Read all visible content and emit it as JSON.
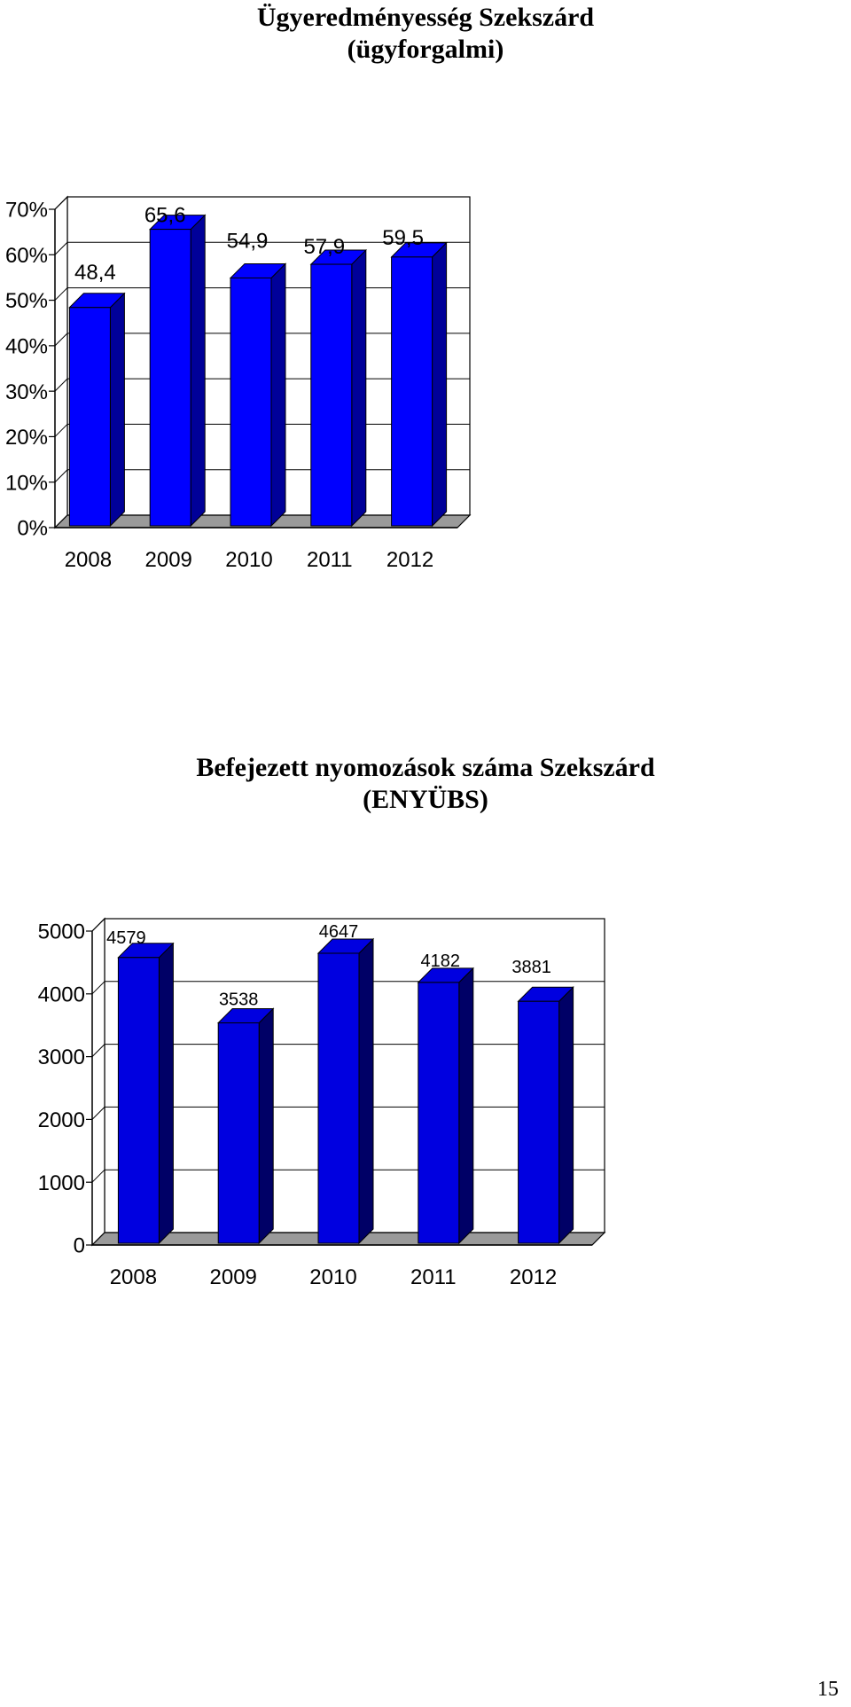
{
  "chart_data": [
    {
      "type": "bar",
      "title_lines": [
        "Ügyeredményesség Szekszárd",
        "(ügyforgalmi)"
      ],
      "categories": [
        "2008",
        "2009",
        "2010",
        "2011",
        "2012"
      ],
      "values": [
        48.4,
        65.6,
        54.9,
        57.9,
        59.5
      ],
      "data_labels": [
        "48,4",
        "65,6",
        "54,9",
        "57,9",
        "59,5"
      ],
      "y_ticks": [
        "0%",
        "10%",
        "20%",
        "30%",
        "40%",
        "50%",
        "60%",
        "70%"
      ],
      "ylim": [
        0,
        70
      ],
      "grid": true,
      "bar_color": "#0000ff",
      "bar_side_color": "#000099"
    },
    {
      "type": "bar",
      "title_lines": [
        "Befejezett nyomozások száma Szekszárd",
        "(ENYÜBS)"
      ],
      "categories": [
        "2008",
        "2009",
        "2010",
        "2011",
        "2012"
      ],
      "values": [
        4579,
        3538,
        4647,
        4182,
        3881
      ],
      "data_labels": [
        "4579",
        "3538",
        "4647",
        "4182",
        "3881"
      ],
      "y_ticks": [
        "0",
        "1000",
        "2000",
        "3000",
        "4000",
        "5000"
      ],
      "ylim": [
        0,
        5000
      ],
      "grid": true,
      "bar_color": "#0000e0",
      "bar_side_color": "#000066"
    }
  ],
  "page_number": "15"
}
